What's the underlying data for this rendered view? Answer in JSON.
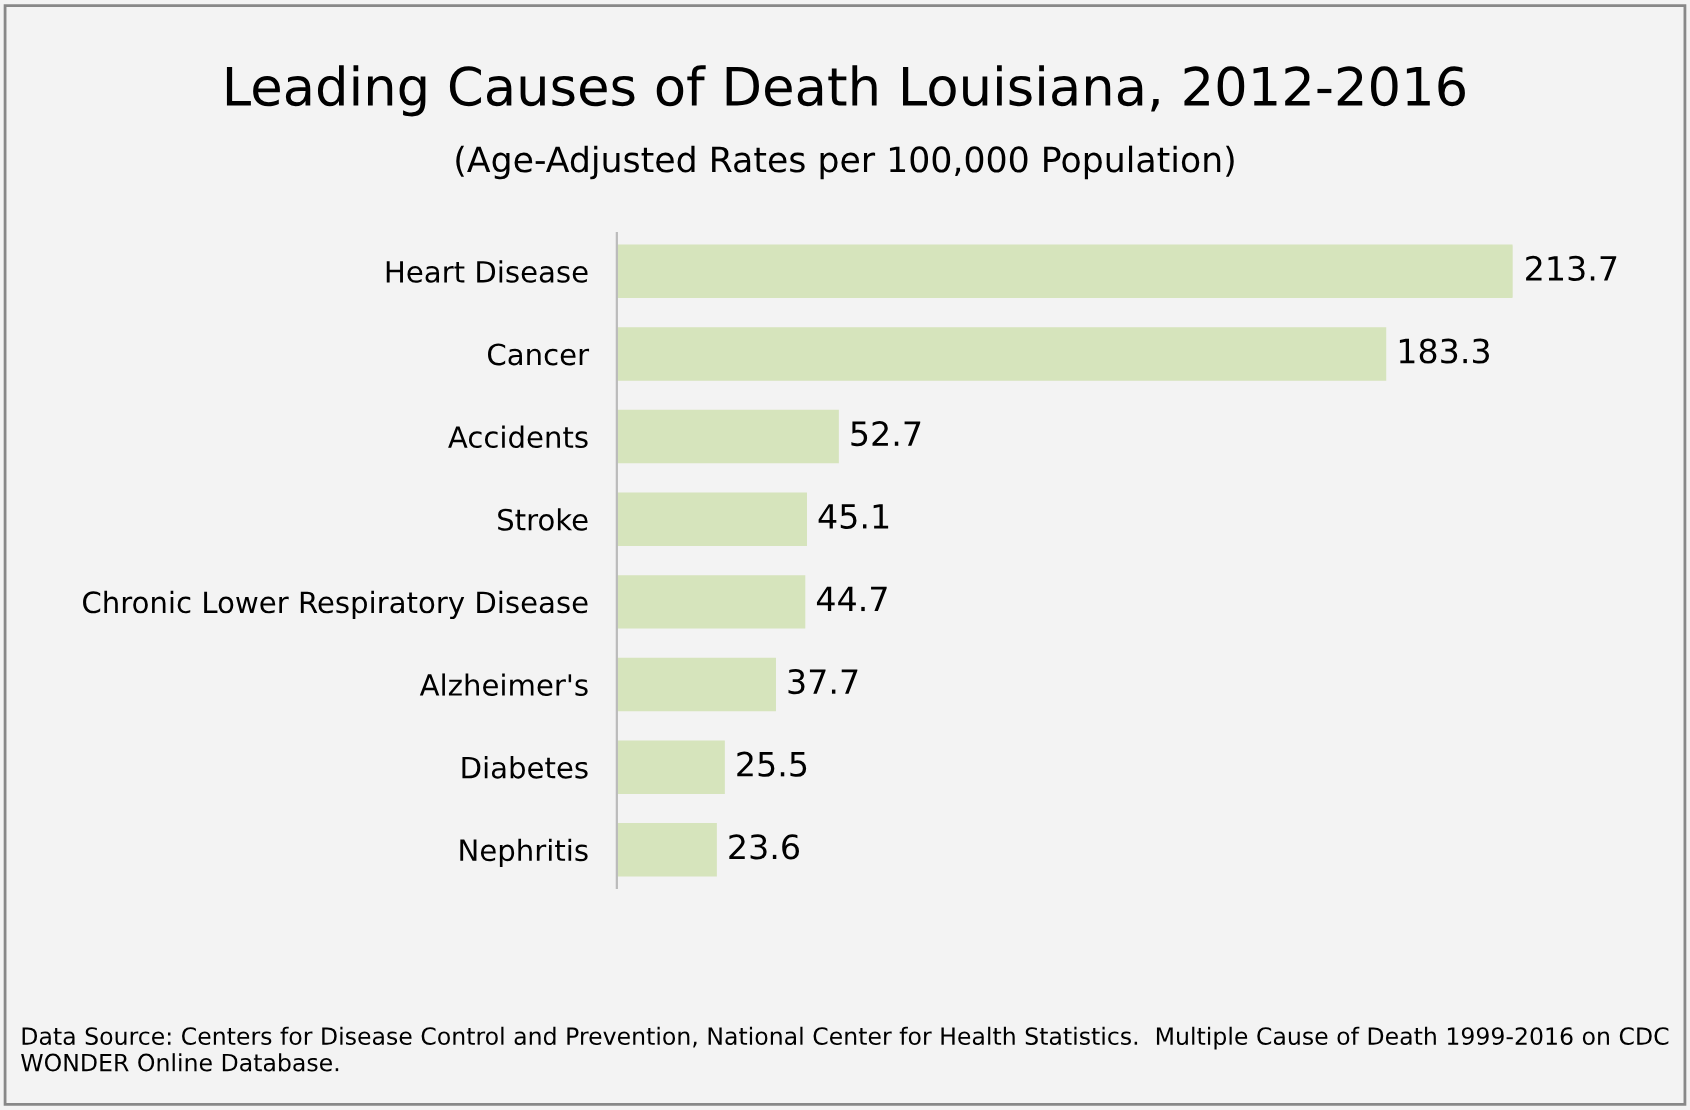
{
  "chart_data": {
    "type": "bar",
    "orientation": "horizontal",
    "title": "Leading Causes of Death Louisiana, 2012-2016",
    "subtitle": "(Age-Adjusted Rates per 100,000 Population)",
    "categories": [
      "Heart Disease",
      "Cancer",
      "Accidents",
      "Stroke",
      "Chronic Lower Respiratory Disease",
      "Alzheimer's",
      "Diabetes",
      "Nephritis"
    ],
    "values": [
      213.7,
      183.3,
      52.7,
      45.1,
      44.7,
      37.7,
      25.5,
      23.6
    ],
    "color": "#d6e4bc",
    "data_labels": true,
    "grid": false,
    "legend": false,
    "annotations": [
      "Data Source: Centers for Disease Control and Prevention, National Center for Health Statistics.  Multiple Cause of Death 1999-2016 on CDC WONDER Online Database."
    ]
  }
}
